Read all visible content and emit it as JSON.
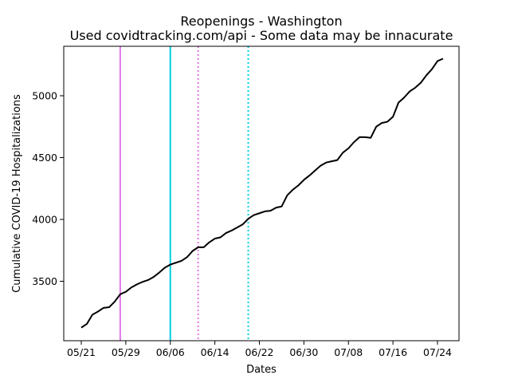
{
  "chart_data": {
    "type": "line",
    "title": "Reopenings - Washington",
    "subtitle": "Used covidtracking.com/api - Some data may be innacurate",
    "xlabel": "Dates",
    "ylabel": "Cumulative COVID-19 Hospitalizations",
    "x_ticks": [
      "05/21",
      "05/29",
      "06/06",
      "06/14",
      "06/22",
      "06/30",
      "07/08",
      "07/16",
      "07/24"
    ],
    "y_ticks": [
      3500,
      4000,
      4500,
      5000
    ],
    "ylim": [
      3020,
      5390
    ],
    "grid": false,
    "series": [
      {
        "color": "#000000",
        "points": [
          [
            "05/21",
            3125
          ],
          [
            "05/22",
            3155
          ],
          [
            "05/23",
            3230
          ],
          [
            "05/24",
            3255
          ],
          [
            "05/25",
            3285
          ],
          [
            "05/26",
            3290
          ],
          [
            "05/27",
            3335
          ],
          [
            "05/28",
            3395
          ],
          [
            "05/29",
            3415
          ],
          [
            "05/30",
            3450
          ],
          [
            "05/31",
            3475
          ],
          [
            "06/01",
            3495
          ],
          [
            "06/02",
            3510
          ],
          [
            "06/03",
            3535
          ],
          [
            "06/04",
            3570
          ],
          [
            "06/05",
            3610
          ],
          [
            "06/06",
            3635
          ],
          [
            "06/07",
            3650
          ],
          [
            "06/08",
            3665
          ],
          [
            "06/09",
            3695
          ],
          [
            "06/10",
            3745
          ],
          [
            "06/11",
            3775
          ],
          [
            "06/12",
            3775
          ],
          [
            "06/13",
            3815
          ],
          [
            "06/14",
            3845
          ],
          [
            "06/15",
            3855
          ],
          [
            "06/16",
            3890
          ],
          [
            "06/17",
            3910
          ],
          [
            "06/18",
            3935
          ],
          [
            "06/19",
            3960
          ],
          [
            "06/20",
            4005
          ],
          [
            "06/21",
            4035
          ],
          [
            "06/22",
            4050
          ],
          [
            "06/23",
            4065
          ],
          [
            "06/24",
            4070
          ],
          [
            "06/25",
            4095
          ],
          [
            "06/26",
            4105
          ],
          [
            "06/27",
            4195
          ],
          [
            "06/28",
            4240
          ],
          [
            "06/29",
            4275
          ],
          [
            "06/30",
            4320
          ],
          [
            "07/01",
            4355
          ],
          [
            "07/02",
            4395
          ],
          [
            "07/03",
            4435
          ],
          [
            "07/04",
            4460
          ],
          [
            "07/05",
            4470
          ],
          [
            "07/06",
            4480
          ],
          [
            "07/07",
            4540
          ],
          [
            "07/08",
            4575
          ],
          [
            "07/09",
            4625
          ],
          [
            "07/10",
            4665
          ],
          [
            "07/11",
            4665
          ],
          [
            "07/12",
            4660
          ],
          [
            "07/13",
            4750
          ],
          [
            "07/14",
            4780
          ],
          [
            "07/15",
            4790
          ],
          [
            "07/16",
            4830
          ],
          [
            "07/17",
            4945
          ],
          [
            "07/18",
            4985
          ],
          [
            "07/19",
            5035
          ],
          [
            "07/20",
            5065
          ],
          [
            "07/21",
            5105
          ],
          [
            "07/22",
            5165
          ],
          [
            "07/23",
            5215
          ],
          [
            "07/24",
            5280
          ],
          [
            "07/25",
            5300
          ]
        ]
      }
    ],
    "vertical_lines": [
      {
        "date": "05/28",
        "color": "#e377e9",
        "style": "solid"
      },
      {
        "date": "06/06",
        "color": "#00cfe0",
        "style": "solid"
      },
      {
        "date": "06/11",
        "color": "#e377e9",
        "style": "dotted"
      },
      {
        "date": "06/20",
        "color": "#00cfe0",
        "style": "dotted"
      }
    ]
  }
}
